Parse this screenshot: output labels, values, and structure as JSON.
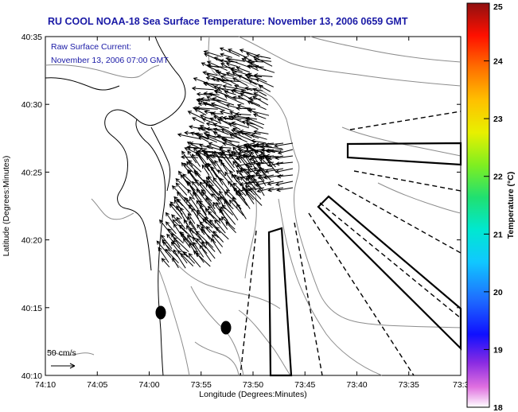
{
  "title": "RU COOL  NOAA-18  Sea Surface Temperature:  November 13, 2006 0659 GMT",
  "annotation": {
    "line1": "Raw Surface Current:",
    "line2": "November 13, 2006 07:00 GMT"
  },
  "scale_label": "50 cm/s",
  "axes": {
    "xlabel": "Longitude (Degrees:Minutes)",
    "ylabel": "Latitude (Degrees:Minutes)",
    "x_ticks": [
      "74:10",
      "74:05",
      "74:00",
      "73:55",
      "73:50",
      "73:45",
      "73:40",
      "73:35",
      "73:3"
    ],
    "y_ticks": [
      "40:35",
      "40:30",
      "40:25",
      "40:20",
      "40:15",
      "40:10"
    ]
  },
  "colorbar": {
    "label": "Temperature (°C)",
    "ticks": [
      "25",
      "24",
      "23",
      "22",
      "21",
      "20",
      "19",
      "18"
    ],
    "range": [
      18,
      25
    ]
  },
  "colors": {
    "title": "#1a1aa6",
    "contour": "#8c8c8c",
    "coast": "#000000"
  }
}
